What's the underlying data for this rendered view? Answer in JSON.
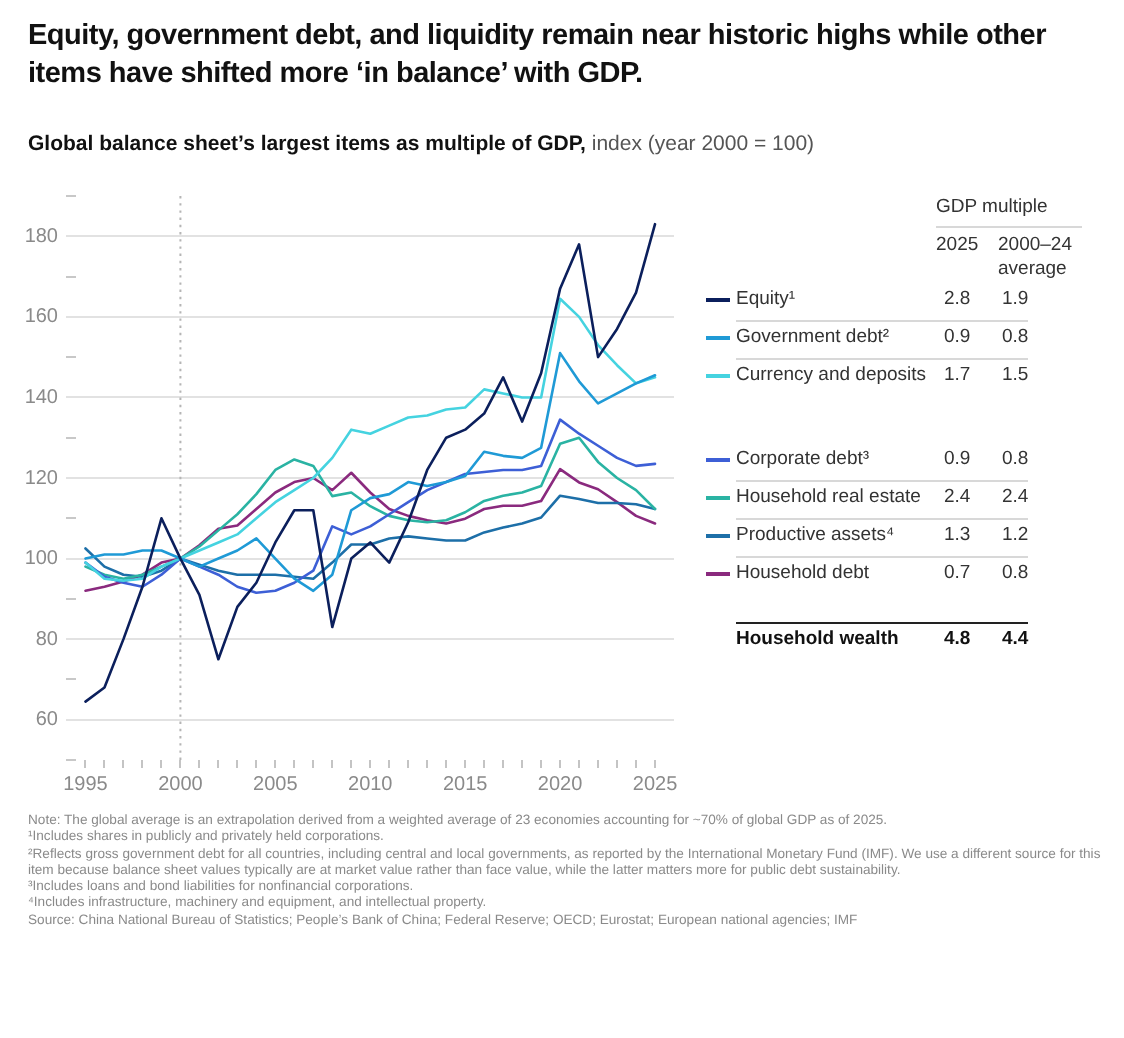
{
  "chart_data": {
    "type": "line",
    "title": "Equity, government debt, and liquidity remain near historic highs while other items have shifted more ‘in balance’ with GDP.",
    "subtitle": "Global balance sheet’s largest items as multiple of GDP,",
    "ylabel": "index (year 2000 = 100)",
    "x": [
      1995,
      1996,
      1997,
      1998,
      1999,
      2000,
      2001,
      2002,
      2003,
      2004,
      2005,
      2006,
      2007,
      2008,
      2009,
      2010,
      2011,
      2012,
      2013,
      2014,
      2015,
      2016,
      2017,
      2018,
      2019,
      2020,
      2021,
      2022,
      2023,
      2024,
      2025
    ],
    "series": [
      {
        "name": "Equity¹",
        "color": "#0b1f5c",
        "values": [
          64.5,
          68,
          80,
          93,
          110,
          100,
          91,
          75,
          88,
          94,
          104,
          112,
          112,
          83,
          100,
          104,
          99,
          109,
          122,
          130,
          132,
          136,
          145,
          134,
          146,
          167,
          178,
          150,
          157,
          166,
          183
        ]
      },
      {
        "name": "Government debt²",
        "color": "#1f9ad6",
        "values": [
          100,
          101,
          101,
          102,
          102,
          100,
          98,
          100,
          102,
          105,
          100,
          95,
          92,
          96,
          112,
          115,
          116,
          119,
          118,
          119,
          120.5,
          126.5,
          125.5,
          125,
          127.5,
          151,
          144,
          138.5,
          141,
          143.5,
          145.5
        ]
      },
      {
        "name": "Currency and deposits",
        "color": "#45d3e0",
        "values": [
          99,
          95,
          94.5,
          95,
          98,
          100,
          102,
          104,
          106,
          110,
          114,
          117,
          120,
          125,
          132,
          131,
          133,
          135,
          135.5,
          137,
          137.5,
          142,
          141,
          140,
          140,
          164.5,
          160,
          153,
          148,
          143.5,
          145
        ]
      },
      {
        "name": "Corporate debt³",
        "color": "#3d5fd6",
        "values": [
          99,
          95.5,
          94,
          93,
          96,
          100,
          98,
          96,
          93,
          91.5,
          92,
          94,
          97,
          108,
          106,
          108,
          111,
          114,
          117,
          119,
          121,
          121.5,
          122,
          122,
          123,
          134.5,
          131,
          128,
          125,
          123,
          123.5
        ]
      },
      {
        "name": "Household real estate",
        "color": "#2ab3a3",
        "values": [
          98,
          96,
          95,
          96,
          98,
          100,
          103,
          107,
          111,
          116,
          122,
          124.6,
          123,
          115.5,
          116.4,
          113,
          110.6,
          109.5,
          109,
          109.5,
          111.5,
          114.3,
          115.6,
          116.4,
          118,
          128.5,
          130,
          124,
          120,
          117,
          112.3
        ]
      },
      {
        "name": "Productive assets⁴",
        "color": "#1d6fa8",
        "values": [
          102.5,
          98,
          96,
          95.5,
          97,
          100,
          98.5,
          97,
          96,
          96,
          96,
          95.5,
          95,
          99,
          103.5,
          103.5,
          105,
          105.5,
          105,
          104.5,
          104.5,
          106.5,
          107.7,
          108.7,
          110.2,
          115.6,
          114.8,
          113.8,
          113.8,
          113.5,
          112.3
        ]
      },
      {
        "name": "Household debt",
        "color": "#8a2a7e",
        "values": [
          92,
          93,
          94.3,
          96,
          99,
          100,
          103.3,
          107.4,
          108.2,
          112.3,
          116.4,
          119,
          120,
          117,
          121.3,
          116.4,
          112.3,
          110.6,
          109.5,
          108.7,
          109.9,
          112.3,
          113.1,
          113.1,
          114.3,
          122.2,
          118.9,
          117.2,
          114,
          110.6,
          108.7
        ]
      }
    ],
    "xlim": [
      1994.5,
      2026
    ],
    "xticks": [
      1995,
      {
        "value": 1996,
        "label": null
      },
      {
        "value": 1997,
        "label": null
      },
      {
        "value": 1998,
        "label": null
      },
      {
        "value": 1999,
        "label": null
      },
      2000,
      {
        "value": 2001,
        "label": null
      },
      {
        "value": 2002,
        "label": null
      },
      {
        "value": 2003,
        "label": null
      },
      {
        "value": 2004,
        "label": null
      },
      2005,
      {
        "value": 2006,
        "label": null
      },
      {
        "value": 2007,
        "label": null
      },
      {
        "value": 2008,
        "label": null
      },
      {
        "value": 2009,
        "label": null
      },
      2010,
      {
        "value": 2011,
        "label": null
      },
      {
        "value": 2012,
        "label": null
      },
      {
        "value": 2013,
        "label": null
      },
      {
        "value": 2014,
        "label": null
      },
      2015,
      {
        "value": 2016,
        "label": null
      },
      {
        "value": 2017,
        "label": null
      },
      {
        "value": 2018,
        "label": null
      },
      {
        "value": 2019,
        "label": null
      },
      2020,
      {
        "value": 2021,
        "label": null
      },
      {
        "value": 2022,
        "label": null
      },
      {
        "value": 2023,
        "label": null
      },
      {
        "value": 2024,
        "label": null
      },
      2025
    ],
    "ylim": [
      50,
      190
    ],
    "yticks": [
      {
        "value": 50,
        "label": null
      },
      60,
      {
        "value": 70,
        "label": null
      },
      80,
      {
        "value": 90,
        "label": null
      },
      100,
      {
        "value": 110,
        "label": null
      },
      120,
      {
        "value": 130,
        "label": null
      },
      140,
      {
        "value": 150,
        "label": null
      },
      160,
      {
        "value": 170,
        "label": null
      },
      180,
      {
        "value": 190,
        "label": null
      }
    ],
    "grid": "y",
    "legend": "right",
    "marker": "none",
    "ref_lines": [
      {
        "axis": "x",
        "value": 2000,
        "color": "#b5b5b5",
        "line_style": "dotted"
      }
    ],
    "annotations": [
      "GDP multiple",
      "2025",
      "2000–24 average",
      "2.8",
      "1.9",
      "0.9",
      "0.8",
      "1.7",
      "1.5",
      "0.9",
      "0.8",
      "2.4",
      "2.4",
      "1.3",
      "1.2",
      "0.7",
      "0.8",
      "Household wealth",
      "4.8",
      "4.4",
      "Note: The global average is an extrapolation derived from a weighted average of 23 economies accounting for ~70% of global GDP as of 2025.",
      "¹Includes shares in publicly and privately held corporations.",
      "²Reflects gross government debt for all countries, including central and local governments, as reported by the International Monetary Fund (IMF). We use a different source for this item because balance sheet values typically are at market value rather than face value, while the latter matters more for public debt sustainability.",
      "³Includes loans and bond liabilities for nonfinancial corporations.",
      "⁴Includes infrastructure, machinery and equipment, and intellectual property.",
      "Source: China National Bureau of Statistics; People’s Bank of China; Federal Reserve; OECD; Eurostat; European national agencies; IMF"
    ]
  }
}
